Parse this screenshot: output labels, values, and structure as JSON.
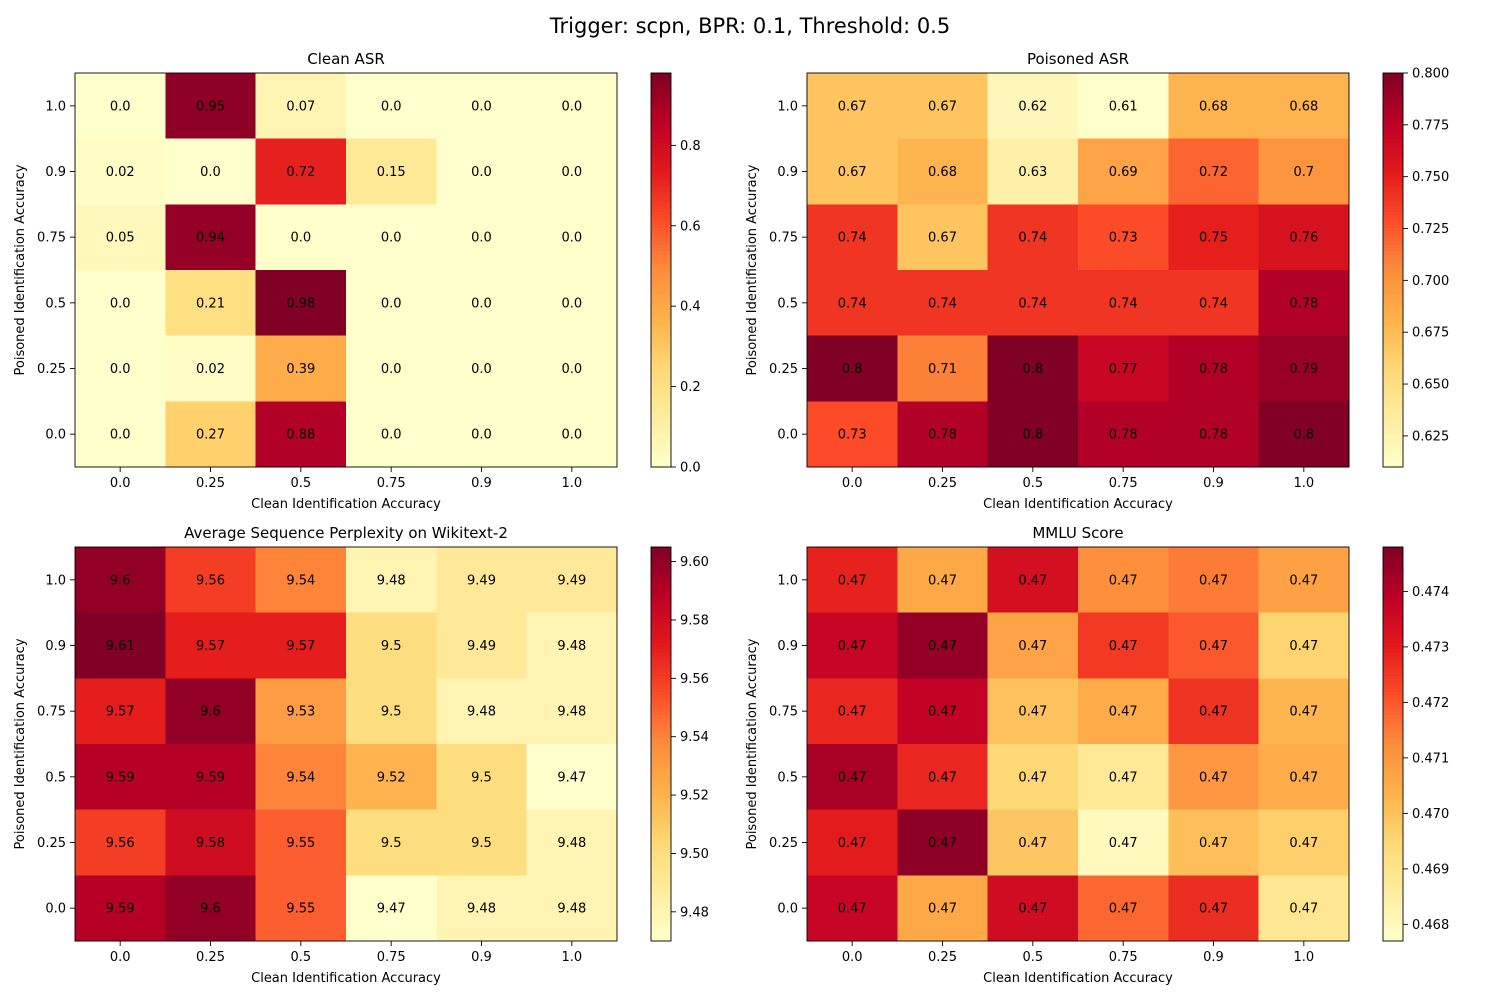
{
  "figure": {
    "suptitle": "Trigger: scpn, BPR: 0.1, Threshold: 0.5"
  },
  "chart_data": [
    {
      "type": "heatmap",
      "title": "Clean ASR",
      "xlabel": "Clean Identification Accuracy",
      "ylabel": "Poisoned Identification Accuracy",
      "x_categories": [
        "0.0",
        "0.25",
        "0.5",
        "0.75",
        "0.9",
        "1.0"
      ],
      "y_categories": [
        "1.0",
        "0.9",
        "0.75",
        "0.5",
        "0.25",
        "0.0"
      ],
      "values": [
        [
          0.0,
          0.95,
          0.07,
          0.0,
          0.0,
          0.0
        ],
        [
          0.02,
          0.0,
          0.72,
          0.15,
          0.0,
          0.0
        ],
        [
          0.05,
          0.94,
          0.0,
          0.0,
          0.0,
          0.0
        ],
        [
          0.0,
          0.21,
          0.98,
          0.0,
          0.0,
          0.0
        ],
        [
          0.0,
          0.02,
          0.39,
          0.0,
          0.0,
          0.0
        ],
        [
          0.0,
          0.27,
          0.88,
          0.0,
          0.0,
          0.0
        ]
      ],
      "labels": [
        [
          "0.0",
          "0.95",
          "0.07",
          "0.0",
          "0.0",
          "0.0"
        ],
        [
          "0.02",
          "0.0",
          "0.72",
          "0.15",
          "0.0",
          "0.0"
        ],
        [
          "0.05",
          "0.94",
          "0.0",
          "0.0",
          "0.0",
          "0.0"
        ],
        [
          "0.0",
          "0.21",
          "0.98",
          "0.0",
          "0.0",
          "0.0"
        ],
        [
          "0.0",
          "0.02",
          "0.39",
          "0.0",
          "0.0",
          "0.0"
        ],
        [
          "0.0",
          "0.27",
          "0.88",
          "0.0",
          "0.0",
          "0.0"
        ]
      ],
      "colormap": "YlOrRd",
      "vmin": 0.0,
      "vmax": 0.98,
      "colorbar_ticks": [
        "0.0",
        "0.2",
        "0.4",
        "0.6",
        "0.8"
      ]
    },
    {
      "type": "heatmap",
      "title": "Poisoned ASR",
      "xlabel": "Clean Identification Accuracy",
      "ylabel": "Poisoned Identification Accuracy",
      "x_categories": [
        "0.0",
        "0.25",
        "0.5",
        "0.75",
        "0.9",
        "1.0"
      ],
      "y_categories": [
        "1.0",
        "0.9",
        "0.75",
        "0.5",
        "0.25",
        "0.0"
      ],
      "values": [
        [
          0.67,
          0.67,
          0.62,
          0.61,
          0.68,
          0.68
        ],
        [
          0.67,
          0.68,
          0.63,
          0.69,
          0.72,
          0.7
        ],
        [
          0.74,
          0.67,
          0.74,
          0.73,
          0.75,
          0.76
        ],
        [
          0.74,
          0.74,
          0.74,
          0.74,
          0.74,
          0.78
        ],
        [
          0.8,
          0.71,
          0.8,
          0.77,
          0.78,
          0.79
        ],
        [
          0.73,
          0.78,
          0.8,
          0.78,
          0.78,
          0.8
        ]
      ],
      "labels": [
        [
          "0.67",
          "0.67",
          "0.62",
          "0.61",
          "0.68",
          "0.68"
        ],
        [
          "0.67",
          "0.68",
          "0.63",
          "0.69",
          "0.72",
          "0.7"
        ],
        [
          "0.74",
          "0.67",
          "0.74",
          "0.73",
          "0.75",
          "0.76"
        ],
        [
          "0.74",
          "0.74",
          "0.74",
          "0.74",
          "0.74",
          "0.78"
        ],
        [
          "0.8",
          "0.71",
          "0.8",
          "0.77",
          "0.78",
          "0.79"
        ],
        [
          "0.73",
          "0.78",
          "0.8",
          "0.78",
          "0.78",
          "0.8"
        ]
      ],
      "colormap": "YlOrRd",
      "vmin": 0.61,
      "vmax": 0.8,
      "colorbar_ticks": [
        "0.625",
        "0.650",
        "0.675",
        "0.700",
        "0.725",
        "0.750",
        "0.775",
        "0.800"
      ]
    },
    {
      "type": "heatmap",
      "title": "Average Sequence Perplexity on Wikitext-2",
      "xlabel": "Clean Identification Accuracy",
      "ylabel": "Poisoned Identification Accuracy",
      "x_categories": [
        "0.0",
        "0.25",
        "0.5",
        "0.75",
        "0.9",
        "1.0"
      ],
      "y_categories": [
        "1.0",
        "0.9",
        "0.75",
        "0.5",
        "0.25",
        "0.0"
      ],
      "values": [
        [
          9.6,
          9.56,
          9.54,
          9.48,
          9.49,
          9.49
        ],
        [
          9.61,
          9.57,
          9.57,
          9.5,
          9.49,
          9.48
        ],
        [
          9.57,
          9.6,
          9.53,
          9.5,
          9.48,
          9.48
        ],
        [
          9.59,
          9.59,
          9.54,
          9.52,
          9.5,
          9.47
        ],
        [
          9.56,
          9.58,
          9.55,
          9.5,
          9.5,
          9.48
        ],
        [
          9.59,
          9.6,
          9.55,
          9.47,
          9.48,
          9.48
        ]
      ],
      "labels": [
        [
          "9.6",
          "9.56",
          "9.54",
          "9.48",
          "9.49",
          "9.49"
        ],
        [
          "9.61",
          "9.57",
          "9.57",
          "9.5",
          "9.49",
          "9.48"
        ],
        [
          "9.57",
          "9.6",
          "9.53",
          "9.5",
          "9.48",
          "9.48"
        ],
        [
          "9.59",
          "9.59",
          "9.54",
          "9.52",
          "9.5",
          "9.47"
        ],
        [
          "9.56",
          "9.58",
          "9.55",
          "9.5",
          "9.5",
          "9.48"
        ],
        [
          "9.59",
          "9.6",
          "9.55",
          "9.47",
          "9.48",
          "9.48"
        ]
      ],
      "colormap": "YlOrRd",
      "vmin": 9.47,
      "vmax": 9.605,
      "colorbar_ticks": [
        "9.48",
        "9.50",
        "9.52",
        "9.54",
        "9.56",
        "9.58",
        "9.60"
      ]
    },
    {
      "type": "heatmap",
      "title": "MMLU Score",
      "xlabel": "Clean Identification Accuracy",
      "ylabel": "Poisoned Identification Accuracy",
      "x_categories": [
        "0.0",
        "0.25",
        "0.5",
        "0.75",
        "0.9",
        "1.0"
      ],
      "y_categories": [
        "1.0",
        "0.9",
        "0.75",
        "0.5",
        "0.25",
        "0.0"
      ],
      "values": [
        [
          0.4729,
          0.4706,
          0.4734,
          0.4712,
          0.4715,
          0.4708
        ],
        [
          0.4737,
          0.4745,
          0.4707,
          0.4725,
          0.472,
          0.4696
        ],
        [
          0.4728,
          0.4738,
          0.47,
          0.4705,
          0.4726,
          0.4703
        ],
        [
          0.4742,
          0.4728,
          0.4695,
          0.4688,
          0.471,
          0.4705
        ],
        [
          0.473,
          0.4746,
          0.4699,
          0.468,
          0.4701,
          0.4697
        ],
        [
          0.4737,
          0.4706,
          0.4735,
          0.4718,
          0.4727,
          0.4689
        ]
      ],
      "labels": [
        [
          "0.47",
          "0.47",
          "0.47",
          "0.47",
          "0.47",
          "0.47"
        ],
        [
          "0.47",
          "0.47",
          "0.47",
          "0.47",
          "0.47",
          "0.47"
        ],
        [
          "0.47",
          "0.47",
          "0.47",
          "0.47",
          "0.47",
          "0.47"
        ],
        [
          "0.47",
          "0.47",
          "0.47",
          "0.47",
          "0.47",
          "0.47"
        ],
        [
          "0.47",
          "0.47",
          "0.47",
          "0.47",
          "0.47",
          "0.47"
        ],
        [
          "0.47",
          "0.47",
          "0.47",
          "0.47",
          "0.47",
          "0.47"
        ]
      ],
      "colormap": "YlOrRd",
      "vmin": 0.4677,
      "vmax": 0.4748,
      "colorbar_ticks": [
        "0.468",
        "0.469",
        "0.470",
        "0.471",
        "0.472",
        "0.473",
        "0.474"
      ]
    }
  ]
}
